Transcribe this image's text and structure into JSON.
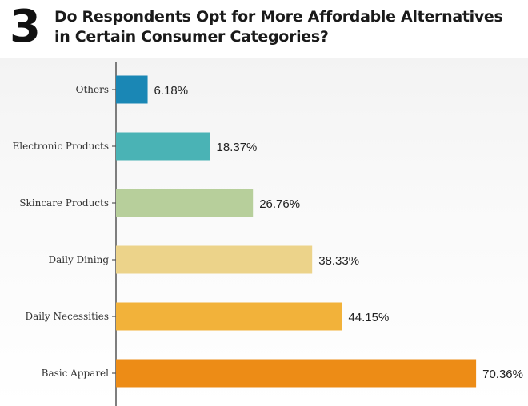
{
  "header": {
    "number": "3",
    "title": "Do Respondents Opt for More Affordable Alternatives in Certain Consumer Categories?"
  },
  "chart_data": {
    "type": "bar",
    "orientation": "horizontal",
    "categories": [
      "Others",
      "Electronic Products",
      "Skincare Products",
      "Daily Dining",
      "Daily Necessities",
      "Basic Apparel"
    ],
    "values": [
      6.18,
      18.37,
      26.76,
      38.33,
      44.15,
      70.36
    ],
    "value_labels": [
      "6.18%",
      "18.37%",
      "26.76%",
      "38.33%",
      "44.15%",
      "70.36%"
    ],
    "colors": [
      "#1a87b5",
      "#4ab3b5",
      "#b7cf9b",
      "#ecd38a",
      "#f2b23a",
      "#ed8c16"
    ],
    "xlim": [
      0,
      73
    ],
    "grid": false,
    "legend": "none"
  }
}
